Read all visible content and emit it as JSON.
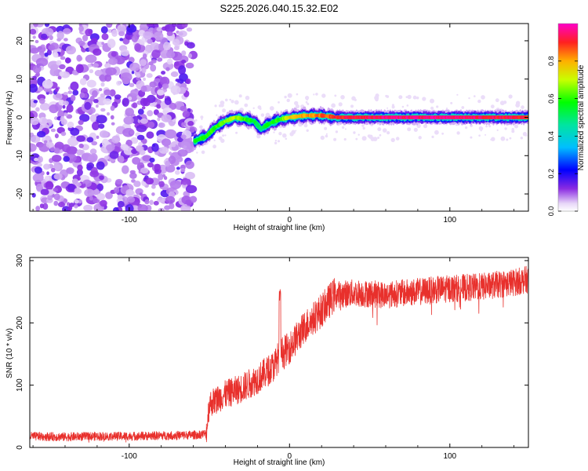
{
  "title": "S225.2026.040.15.32.E02",
  "chart_data": [
    {
      "type": "heatmap",
      "title": "S225.2026.040.15.32.E02",
      "xlabel": "Height of straight line (km)",
      "ylabel": "Frequency (Hz)",
      "xlim": [
        -162,
        149
      ],
      "ylim": [
        -24.5,
        24.5
      ],
      "xticks": [
        -100,
        0,
        100
      ],
      "xtick_labels": [
        "-100",
        "0",
        "100"
      ],
      "yticks": [
        -20,
        -10,
        0,
        10,
        20
      ],
      "ytick_labels": [
        "-20",
        "-10",
        "0",
        "10",
        "20"
      ],
      "noise_region_x": [
        -162,
        -60
      ],
      "ridge_points": [
        {
          "x": -58,
          "y": -6.0,
          "amp": 0.55
        },
        {
          "x": -52,
          "y": -5.0,
          "amp": 0.6
        },
        {
          "x": -46,
          "y": -2.5,
          "amp": 0.6
        },
        {
          "x": -40,
          "y": -1.0,
          "amp": 0.65
        },
        {
          "x": -34,
          "y": 0.0,
          "amp": 0.7
        },
        {
          "x": -28,
          "y": -0.5,
          "amp": 0.6
        },
        {
          "x": -22,
          "y": -1.0,
          "amp": 0.55
        },
        {
          "x": -18,
          "y": -3.0,
          "amp": 0.5
        },
        {
          "x": -12,
          "y": -1.5,
          "amp": 0.55
        },
        {
          "x": -6,
          "y": -0.5,
          "amp": 0.6
        },
        {
          "x": 0,
          "y": 0.0,
          "amp": 0.75
        },
        {
          "x": 10,
          "y": 0.5,
          "amp": 0.8
        },
        {
          "x": 20,
          "y": 0.5,
          "amp": 0.85
        },
        {
          "x": 30,
          "y": 0.0,
          "amp": 0.9
        },
        {
          "x": 60,
          "y": 0.0,
          "amp": 0.95
        },
        {
          "x": 100,
          "y": 0.0,
          "amp": 0.95
        },
        {
          "x": 149,
          "y": 0.0,
          "amp": 0.9
        }
      ]
    },
    {
      "type": "colorbar",
      "label": "Normalized spectral amplitude",
      "range": [
        0,
        1
      ],
      "ticks": [
        0.0,
        0.2,
        0.4,
        0.6,
        0.8
      ],
      "tick_labels": [
        "0.0",
        "0.2",
        "0.4",
        "0.6",
        "0.8"
      ],
      "colormap": "rainbow"
    },
    {
      "type": "line",
      "xlabel": "Height of straight line (km)",
      "ylabel": "SNR (10 * v/v)",
      "xlim": [
        -162,
        149
      ],
      "ylim": [
        0,
        305
      ],
      "xticks": [
        -100,
        0,
        100
      ],
      "xtick_labels": [
        "-100",
        "0",
        "100"
      ],
      "yticks": [
        0,
        100,
        200,
        300
      ],
      "ytick_labels": [
        "0",
        "100",
        "200",
        "300"
      ],
      "color": "#e8302c",
      "series": [
        {
          "name": "SNR",
          "points": [
            {
              "x": -162,
              "y": 18
            },
            {
              "x": -140,
              "y": 17
            },
            {
              "x": -120,
              "y": 18
            },
            {
              "x": -100,
              "y": 18
            },
            {
              "x": -80,
              "y": 19
            },
            {
              "x": -60,
              "y": 20
            },
            {
              "x": -52,
              "y": 22
            },
            {
              "x": -50,
              "y": 70
            },
            {
              "x": -40,
              "y": 85
            },
            {
              "x": -30,
              "y": 95
            },
            {
              "x": -20,
              "y": 110
            },
            {
              "x": -10,
              "y": 130
            },
            {
              "x": -6,
              "y": 150
            },
            {
              "x": 0,
              "y": 160
            },
            {
              "x": 10,
              "y": 195
            },
            {
              "x": 20,
              "y": 220
            },
            {
              "x": 28,
              "y": 245
            },
            {
              "x": 40,
              "y": 248
            },
            {
              "x": 60,
              "y": 245
            },
            {
              "x": 80,
              "y": 250
            },
            {
              "x": 100,
              "y": 255
            },
            {
              "x": 120,
              "y": 258
            },
            {
              "x": 140,
              "y": 265
            },
            {
              "x": 149,
              "y": 270
            }
          ],
          "spikes": [
            {
              "x": -6,
              "y": 255
            }
          ]
        }
      ]
    }
  ]
}
